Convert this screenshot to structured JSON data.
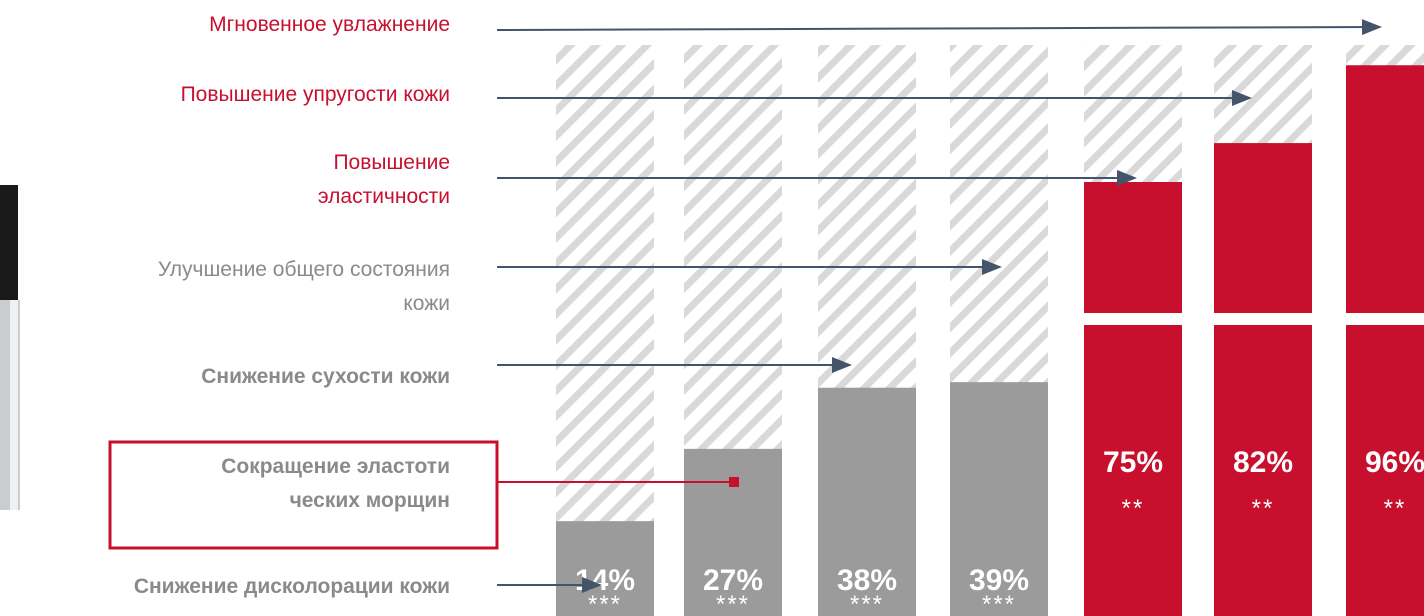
{
  "chart_data": {
    "type": "bar",
    "categories": [
      "Снижение дисколорации кожи",
      "Сокращение эластоти\nческих морщин",
      "Снижение сухости кожи",
      "Улучшение  общего состояния\nкожи",
      "Повышение\nэластичности",
      "Повышение упругости кожи",
      "Мгновенное  увлажнение"
    ],
    "values": [
      14,
      27,
      38,
      39,
      75,
      82,
      96
    ],
    "value_labels": [
      "14%",
      "27%",
      "38%",
      "39%",
      "75%",
      "82%",
      "96%"
    ],
    "significance": [
      "***",
      "***",
      "***",
      "***",
      "**",
      "**",
      "**"
    ],
    "colors": [
      "#9b9b9b",
      "#9b9b9b",
      "#9b9b9b",
      "#9b9b9b",
      "#c8102e",
      "#c8102e",
      "#c8102e"
    ],
    "ylim": [
      0,
      100
    ]
  }
}
